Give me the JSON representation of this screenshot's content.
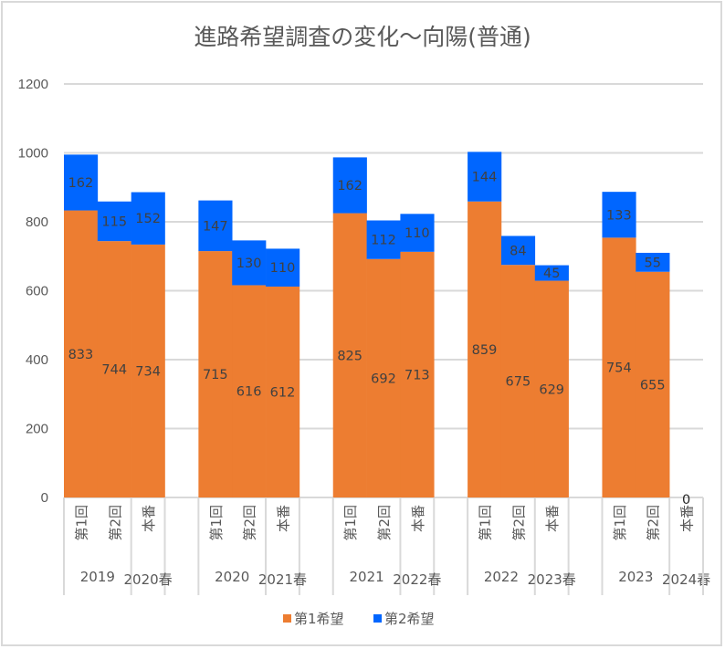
{
  "chart_data": {
    "type": "bar",
    "stacked": true,
    "title": "進路希望調査の変化～向陽(普通)",
    "xlabel": "",
    "ylabel": "",
    "ylim": [
      0,
      1200
    ],
    "yticks": [
      "0",
      "200",
      "400",
      "600",
      "800",
      "1000",
      "1200"
    ],
    "grid": true,
    "legend_position": "bottom",
    "groups": [
      {
        "year": "2019",
        "spring": "2020春",
        "items": [
          "第1回",
          "第2回",
          "本番"
        ]
      },
      {
        "year": "2020",
        "spring": "2021春",
        "items": [
          "第1回",
          "第2回",
          "本番"
        ]
      },
      {
        "year": "2021",
        "spring": "2022春",
        "items": [
          "第1回",
          "第2回",
          "本番"
        ]
      },
      {
        "year": "2022",
        "spring": "2023春",
        "items": [
          "第1回",
          "第2回",
          "本番"
        ]
      },
      {
        "year": "2023",
        "spring": "2024春",
        "items": [
          "第1回",
          "第2回",
          "本番"
        ]
      }
    ],
    "series": [
      {
        "name": "第1希望",
        "color": "#ED7D31",
        "values": [
          [
            833,
            744,
            734
          ],
          [
            715,
            616,
            612
          ],
          [
            825,
            692,
            713
          ],
          [
            859,
            675,
            629
          ],
          [
            754,
            655,
            0
          ]
        ]
      },
      {
        "name": "第2希望",
        "color": "#0066FF",
        "values": [
          [
            162,
            115,
            152
          ],
          [
            147,
            130,
            110
          ],
          [
            162,
            112,
            110
          ],
          [
            144,
            84,
            45
          ],
          [
            133,
            55,
            0
          ]
        ]
      }
    ],
    "zero_total_label": "0"
  }
}
